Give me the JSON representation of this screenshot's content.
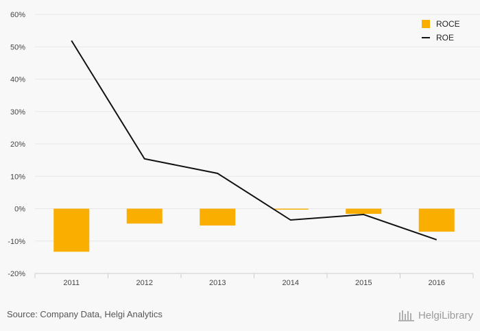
{
  "chart_data": {
    "type": "bar",
    "categories": [
      "2011",
      "2012",
      "2013",
      "2014",
      "2015",
      "2016"
    ],
    "series": [
      {
        "name": "ROCE",
        "type": "bar",
        "values": [
          -13.3,
          -4.6,
          -5.2,
          -0.3,
          -1.6,
          -7.1
        ]
      },
      {
        "name": "ROE",
        "type": "line",
        "values": [
          51.9,
          15.4,
          10.9,
          -3.5,
          -1.8,
          -9.6
        ]
      }
    ],
    "y_ticks": [
      "60%",
      "50%",
      "40%",
      "30%",
      "20%",
      "10%",
      "0%",
      "-10%",
      "-20%"
    ],
    "ylim": [
      -20,
      60
    ],
    "y_unit": "%",
    "grid": true,
    "legend_position": "top-right",
    "colors": {
      "ROCE": "#f9ae00",
      "ROE": "#111111",
      "grid": "#e6e6e6",
      "axis": "#cccccc"
    }
  },
  "footer": {
    "source": "Source: Company Data, Helgi Analytics",
    "brand": "HelgiLibrary"
  },
  "icons": {
    "brand_logo": "helgi-logo-icon"
  }
}
